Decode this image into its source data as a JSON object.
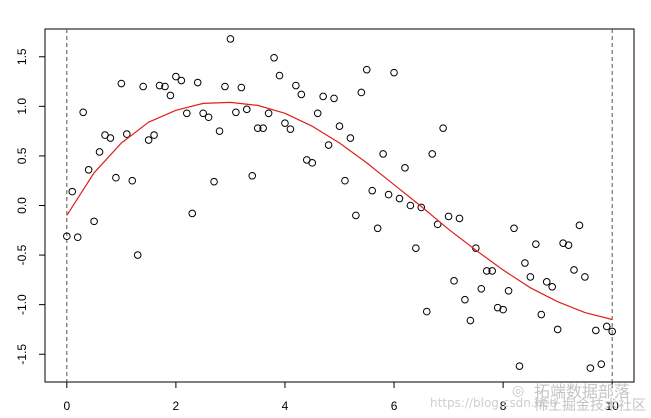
{
  "chart_data": {
    "type": "scatter",
    "title": "",
    "xlabel": "",
    "ylabel": "",
    "xlim": [
      -0.4,
      10.4
    ],
    "ylim": [
      -1.78,
      1.78
    ],
    "x_ticks": [
      0,
      2,
      4,
      6,
      8,
      10
    ],
    "x_tick_labels": [
      "0",
      "2",
      "4",
      "6",
      "8",
      "10"
    ],
    "y_ticks": [
      -1.5,
      -1.0,
      -0.5,
      0.0,
      0.5,
      1.0,
      1.5
    ],
    "y_tick_labels": [
      "-1.5",
      "-1.0",
      "-0.5",
      "0.0",
      "0.5",
      "1.0",
      "1.5"
    ],
    "grid": false,
    "vertical_reference_lines": [
      0,
      10
    ],
    "series": [
      {
        "kind": "points",
        "marker": "open-circle",
        "color": "#000000",
        "x": [
          0.0,
          0.1,
          0.2,
          0.3,
          0.4,
          0.5,
          0.6,
          0.7,
          0.8,
          0.9,
          1.0,
          1.1,
          1.2,
          1.3,
          1.4,
          1.5,
          1.6,
          1.7,
          1.8,
          1.9,
          2.0,
          2.1,
          2.2,
          2.3,
          2.4,
          2.5,
          2.6,
          2.7,
          2.8,
          2.9,
          3.0,
          3.1,
          3.2,
          3.3,
          3.4,
          3.5,
          3.6,
          3.7,
          3.8,
          3.9,
          4.0,
          4.1,
          4.2,
          4.3,
          4.4,
          4.5,
          4.6,
          4.7,
          4.8,
          4.9,
          5.0,
          5.1,
          5.2,
          5.3,
          5.4,
          5.5,
          5.6,
          5.7,
          5.8,
          5.9,
          6.0,
          6.1,
          6.2,
          6.3,
          6.4,
          6.5,
          6.6,
          6.7,
          6.8,
          6.9,
          7.0,
          7.1,
          7.2,
          7.3,
          7.4,
          7.5,
          7.6,
          7.7,
          7.8,
          7.9,
          8.0,
          8.1,
          8.2,
          8.3,
          8.4,
          8.5,
          8.6,
          8.7,
          8.8,
          8.9,
          9.0,
          9.1,
          9.2,
          9.3,
          9.4,
          9.5,
          9.6,
          9.7,
          9.8,
          9.9,
          10.0
        ],
        "y": [
          -0.31,
          0.14,
          -0.32,
          0.94,
          0.36,
          -0.16,
          0.54,
          0.71,
          0.68,
          0.28,
          1.23,
          0.72,
          0.25,
          -0.5,
          1.2,
          0.66,
          0.71,
          1.21,
          1.2,
          1.11,
          1.3,
          1.26,
          0.93,
          -0.08,
          1.24,
          0.93,
          0.89,
          0.24,
          0.75,
          1.2,
          1.68,
          0.94,
          1.19,
          0.97,
          0.3,
          0.78,
          0.78,
          0.93,
          1.49,
          1.31,
          0.83,
          0.77,
          1.21,
          1.12,
          0.46,
          0.43,
          0.93,
          1.1,
          0.61,
          1.08,
          0.8,
          0.25,
          0.68,
          -0.1,
          1.14,
          1.37,
          0.15,
          -0.23,
          0.52,
          0.11,
          1.34,
          0.07,
          0.38,
          0.0,
          -0.43,
          -0.02,
          -1.07,
          0.52,
          -0.19,
          0.78,
          -0.11,
          -0.76,
          -0.13,
          -0.95,
          -1.16,
          -0.43,
          -0.84,
          -0.66,
          -0.66,
          -1.03,
          -1.05,
          -0.86,
          -0.23,
          -1.62,
          -0.58,
          -0.72,
          -0.39,
          -1.1,
          -0.77,
          -0.82,
          -1.25,
          -0.38,
          -0.4,
          -0.65,
          -0.2,
          -0.72,
          -1.64,
          -1.26,
          -1.6,
          -1.22,
          -1.27
        ]
      },
      {
        "kind": "line",
        "color": "#e0201a",
        "x": [
          0.0,
          0.5,
          1.0,
          1.5,
          2.0,
          2.5,
          3.0,
          3.5,
          4.0,
          4.5,
          5.0,
          5.5,
          6.0,
          6.5,
          7.0,
          7.5,
          8.0,
          8.5,
          9.0,
          9.5,
          10.0
        ],
        "y": [
          -0.1,
          0.33,
          0.63,
          0.84,
          0.96,
          1.03,
          1.04,
          1.01,
          0.93,
          0.8,
          0.63,
          0.43,
          0.21,
          -0.01,
          -0.24,
          -0.45,
          -0.65,
          -0.83,
          -0.97,
          -1.08,
          -1.15
        ]
      }
    ]
  },
  "watermark": {
    "icon": "wechat-icon",
    "title": "拓端数据部落",
    "url": "https://blog.csdn.net/",
    "subtitle": "稀土掘金技术社区"
  }
}
